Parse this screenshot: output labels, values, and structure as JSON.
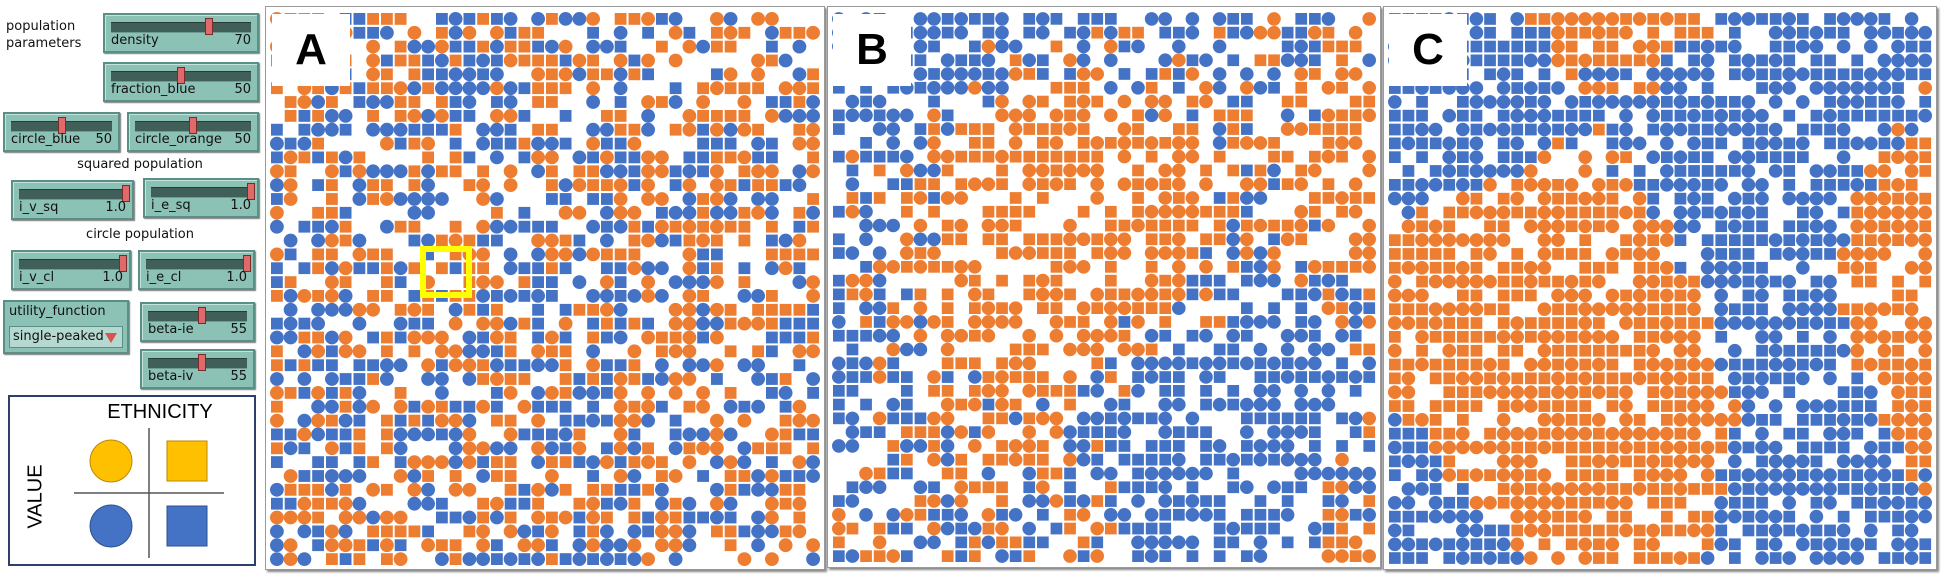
{
  "controls": {
    "population_parameters_label": "population\nparameters",
    "density": {
      "name": "density",
      "value": "70",
      "level": 0.7
    },
    "fraction_blue": {
      "name": "fraction_blue",
      "value": "50",
      "level": 0.5
    },
    "circle_blue": {
      "name": "circle_blue",
      "value": "50",
      "level": 0.5
    },
    "circle_orange": {
      "name": "circle_orange",
      "value": "50",
      "level": 0.5
    },
    "squared_population_label": "squared population",
    "i_v_sq": {
      "name": "i_v_sq",
      "value": "1.0",
      "level": 1.0
    },
    "i_e_sq": {
      "name": "i_e_sq",
      "value": "1.0",
      "level": 1.0
    },
    "circle_population_label": "circle population",
    "i_v_cl": {
      "name": "i_v_cl",
      "value": "1.0",
      "level": 1.0
    },
    "i_e_cl": {
      "name": "i_e_cl",
      "value": "1.0",
      "level": 1.0
    },
    "utility_function": {
      "name": "utility_function",
      "selected": "single-peaked"
    },
    "beta_ie": {
      "name": "beta-ie",
      "value": "55",
      "level": 0.55
    },
    "beta_iv": {
      "name": "beta-iv",
      "value": "55",
      "level": 0.55
    }
  },
  "legend": {
    "title": "ETHNICITY",
    "side_label": "VALUE",
    "colors": {
      "yellow": "#ffc000",
      "blue": "#4472c4"
    },
    "cells": [
      "yellow-circle",
      "yellow-square",
      "blue-circle",
      "blue-square"
    ]
  },
  "panels": [
    {
      "letter": "A",
      "state": "initial random mix"
    },
    {
      "letter": "B",
      "state": "partially segregated"
    },
    {
      "letter": "C",
      "state": "segregated clusters"
    }
  ],
  "agent_colors": {
    "orange": "#ed7d31",
    "blue": "#4472c4",
    "highlight": "#ffff00"
  }
}
